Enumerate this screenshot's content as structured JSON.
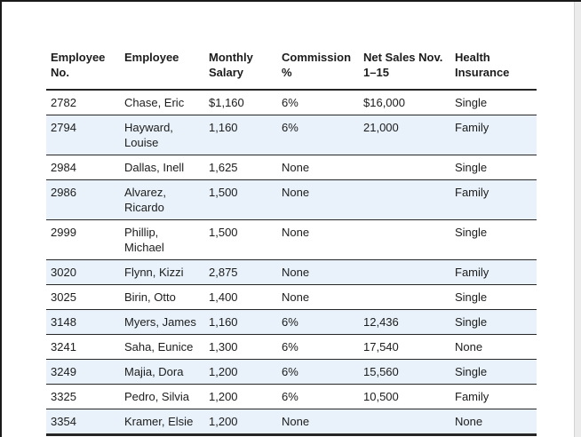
{
  "page": {
    "background_color": "#ffffff",
    "edge_color": "#1a1a1a",
    "band_color": "#e9f2fa",
    "rule_color": "#262626"
  },
  "table": {
    "columns": [
      "Employee No.",
      "Employee",
      "Monthly Salary",
      "Commission %",
      "Net Sales Nov. 1–15",
      "Health Insurance"
    ],
    "rows": [
      [
        "2782",
        "Chase, Eric",
        "$1,160",
        "6%",
        "$16,000",
        "Single"
      ],
      [
        "2794",
        "Hayward, Louise",
        "1,160",
        "6%",
        "21,000",
        "Family"
      ],
      [
        "2984",
        "Dallas, Inell",
        "1,625",
        "None",
        "",
        "Single"
      ],
      [
        "2986",
        "Alvarez, Ricardo",
        "1,500",
        "None",
        "",
        "Family"
      ],
      [
        "2999",
        "Phillip, Michael",
        "1,500",
        "None",
        "",
        "Single"
      ],
      [
        "3020",
        "Flynn, Kizzi",
        "2,875",
        "None",
        "",
        "Family"
      ],
      [
        "3025",
        "Birin, Otto",
        "1,400",
        "None",
        "",
        "Single"
      ],
      [
        "3148",
        "Myers, James",
        "1,160",
        "6%",
        "12,436",
        "Single"
      ],
      [
        "3241",
        "Saha, Eunice",
        "1,300",
        "6%",
        "17,540",
        "None"
      ],
      [
        "3249",
        "Majia, Dora",
        "1,200",
        "6%",
        "15,560",
        "Single"
      ],
      [
        "3325",
        "Pedro, Silvia",
        "1,200",
        "6%",
        "10,500",
        "Family"
      ],
      [
        "3354",
        "Kramer, Elsie",
        "1,200",
        "None",
        "",
        "None"
      ]
    ]
  }
}
